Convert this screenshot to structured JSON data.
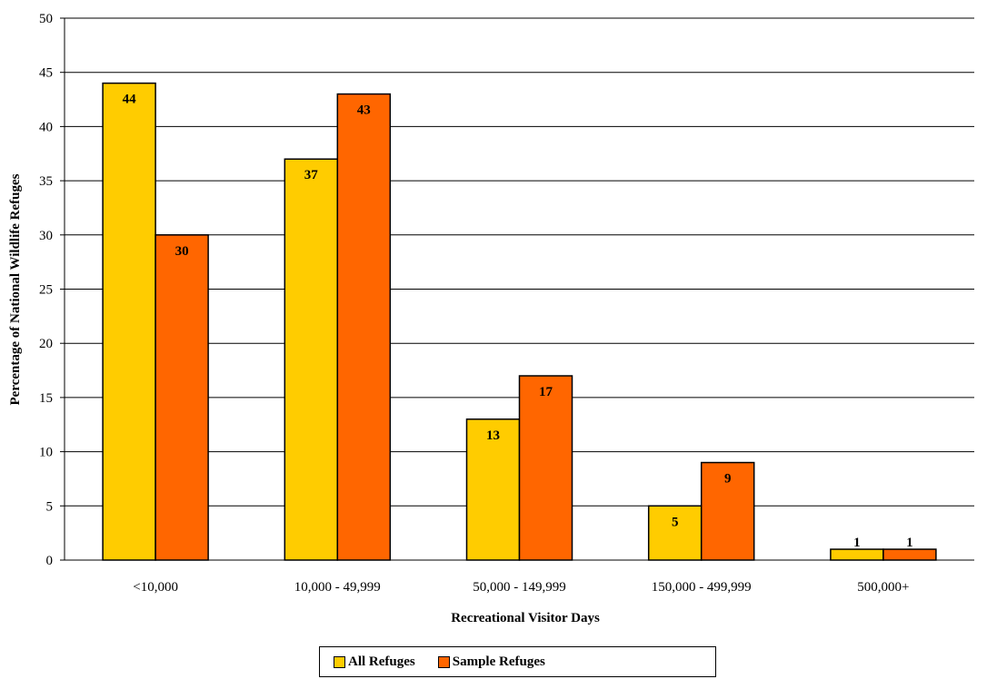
{
  "chart_data": {
    "type": "bar",
    "categories": [
      "<10,000",
      "10,000 - 49,999",
      "50,000 - 149,999",
      "150,000 - 499,999",
      "500,000+"
    ],
    "series": [
      {
        "name": "All Refuges",
        "values": [
          44,
          37,
          13,
          5,
          1
        ],
        "color": "#FFCC00"
      },
      {
        "name": "Sample Refuges",
        "values": [
          30,
          43,
          17,
          9,
          1
        ],
        "color": "#FF6600"
      }
    ],
    "xlabel": "Recreational Visitor Days",
    "ylabel": "Percentage of National Wildlife Refuges",
    "ylim": [
      0,
      50
    ],
    "yticks": [
      0,
      5,
      10,
      15,
      20,
      25,
      30,
      35,
      40,
      45,
      50
    ],
    "grid": "horizontal",
    "legend_position": "bottom"
  }
}
